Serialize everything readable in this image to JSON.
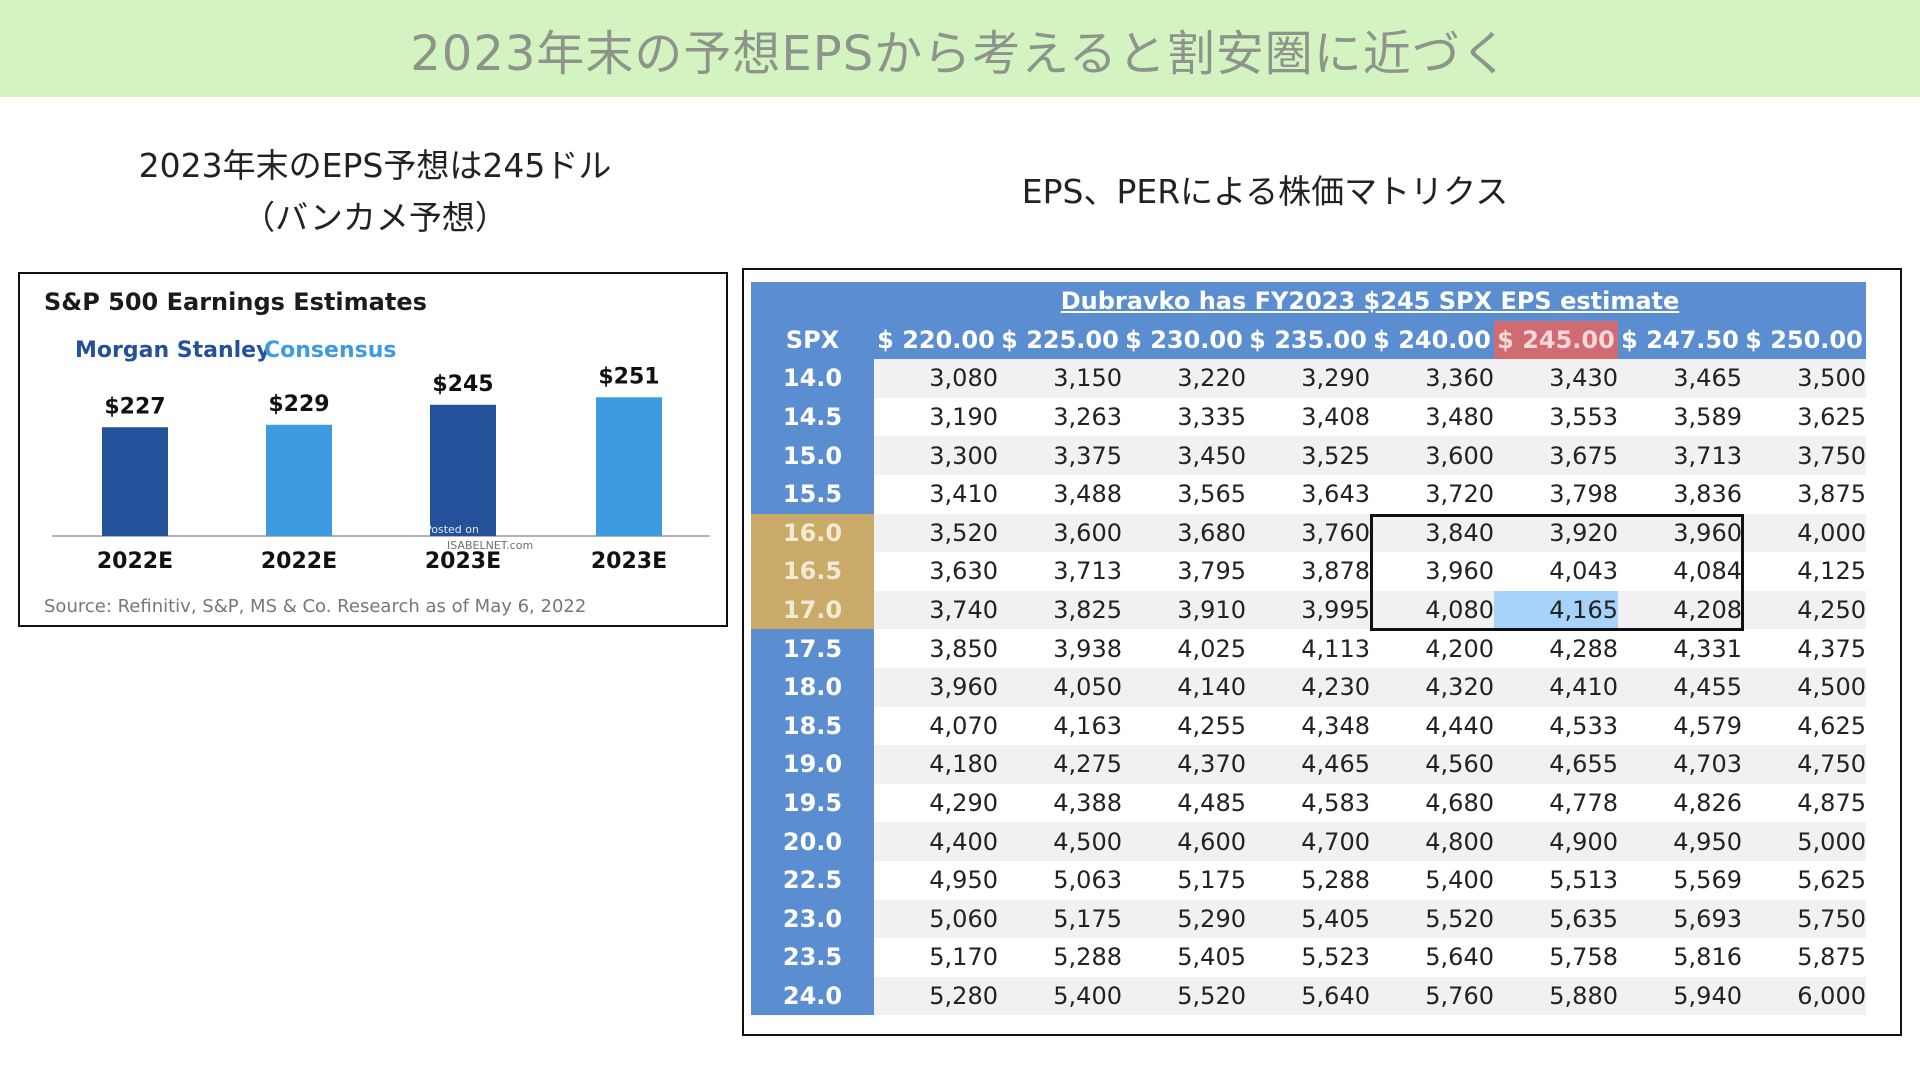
{
  "banner": {
    "title": "2023年末の予想EPSから考えると割安圏に近づく"
  },
  "left_heading": {
    "line1": "2023年末のEPS予想は245ドル",
    "line2": "（バンカメ予想）"
  },
  "right_heading": {
    "title": "EPS、PERによる株価マトリクス"
  },
  "colors": {
    "ms": "#23529a",
    "consensus": "#3e9be0",
    "banner": "#d3f3c0",
    "table_header": "#5b8ed1",
    "highlight_eps": "#cf6b72",
    "highlight_per": "#c9aa69",
    "highlight_cell": "#a7d3fb"
  },
  "chart_data": [
    {
      "type": "bar",
      "title": "S&P 500 Earnings Estimates",
      "legend": [
        "Morgan Stanley",
        "Consensus"
      ],
      "categories": [
        "2022E",
        "2022E",
        "2023E",
        "2023E"
      ],
      "series_of_bar": [
        "Morgan Stanley",
        "Consensus",
        "Morgan Stanley",
        "Consensus"
      ],
      "values": [
        227,
        229,
        245,
        251
      ],
      "value_labels": [
        "$227",
        "$229",
        "$245",
        "$251"
      ],
      "source": "Source: Refinitiv, S&P, MS & Co. Research as of May 6, 2022",
      "watermark": [
        "Posted on",
        "ISABELNET.com"
      ]
    },
    {
      "type": "table",
      "caption": "Dubravko has FY2023 $245 SPX EPS estimate",
      "corner_label": "SPX",
      "columns": [
        "$ 220.00",
        "$ 225.00",
        "$ 230.00",
        "$ 235.00",
        "$ 240.00",
        "$ 245.00",
        "$ 247.50",
        "$ 250.00"
      ],
      "highlight_column": 5,
      "highlight_rows": [
        4,
        5,
        6
      ],
      "highlight_cell": [
        6,
        5
      ],
      "rows": [
        {
          "per": "14.0",
          "values": [
            "3,080",
            "3,150",
            "3,220",
            "3,290",
            "3,360",
            "3,430",
            "3,465",
            "3,500"
          ]
        },
        {
          "per": "14.5",
          "values": [
            "3,190",
            "3,263",
            "3,335",
            "3,408",
            "3,480",
            "3,553",
            "3,589",
            "3,625"
          ]
        },
        {
          "per": "15.0",
          "values": [
            "3,300",
            "3,375",
            "3,450",
            "3,525",
            "3,600",
            "3,675",
            "3,713",
            "3,750"
          ]
        },
        {
          "per": "15.5",
          "values": [
            "3,410",
            "3,488",
            "3,565",
            "3,643",
            "3,720",
            "3,798",
            "3,836",
            "3,875"
          ]
        },
        {
          "per": "16.0",
          "values": [
            "3,520",
            "3,600",
            "3,680",
            "3,760",
            "3,840",
            "3,920",
            "3,960",
            "4,000"
          ]
        },
        {
          "per": "16.5",
          "values": [
            "3,630",
            "3,713",
            "3,795",
            "3,878",
            "3,960",
            "4,043",
            "4,084",
            "4,125"
          ]
        },
        {
          "per": "17.0",
          "values": [
            "3,740",
            "3,825",
            "3,910",
            "3,995",
            "4,080",
            "4,165",
            "4,208",
            "4,250"
          ]
        },
        {
          "per": "17.5",
          "values": [
            "3,850",
            "3,938",
            "4,025",
            "4,113",
            "4,200",
            "4,288",
            "4,331",
            "4,375"
          ]
        },
        {
          "per": "18.0",
          "values": [
            "3,960",
            "4,050",
            "4,140",
            "4,230",
            "4,320",
            "4,410",
            "4,455",
            "4,500"
          ]
        },
        {
          "per": "18.5",
          "values": [
            "4,070",
            "4,163",
            "4,255",
            "4,348",
            "4,440",
            "4,533",
            "4,579",
            "4,625"
          ]
        },
        {
          "per": "19.0",
          "values": [
            "4,180",
            "4,275",
            "4,370",
            "4,465",
            "4,560",
            "4,655",
            "4,703",
            "4,750"
          ]
        },
        {
          "per": "19.5",
          "values": [
            "4,290",
            "4,388",
            "4,485",
            "4,583",
            "4,680",
            "4,778",
            "4,826",
            "4,875"
          ]
        },
        {
          "per": "20.0",
          "values": [
            "4,400",
            "4,500",
            "4,600",
            "4,700",
            "4,800",
            "4,900",
            "4,950",
            "5,000"
          ]
        },
        {
          "per": "22.5",
          "values": [
            "4,950",
            "5,063",
            "5,175",
            "5,288",
            "5,400",
            "5,513",
            "5,569",
            "5,625"
          ]
        },
        {
          "per": "23.0",
          "values": [
            "5,060",
            "5,175",
            "5,290",
            "5,405",
            "5,520",
            "5,635",
            "5,693",
            "5,750"
          ]
        },
        {
          "per": "23.5",
          "values": [
            "5,170",
            "5,288",
            "5,405",
            "5,523",
            "5,640",
            "5,758",
            "5,816",
            "5,875"
          ]
        },
        {
          "per": "24.0",
          "values": [
            "5,280",
            "5,400",
            "5,520",
            "5,640",
            "5,760",
            "5,880",
            "5,940",
            "6,000"
          ]
        }
      ]
    }
  ]
}
